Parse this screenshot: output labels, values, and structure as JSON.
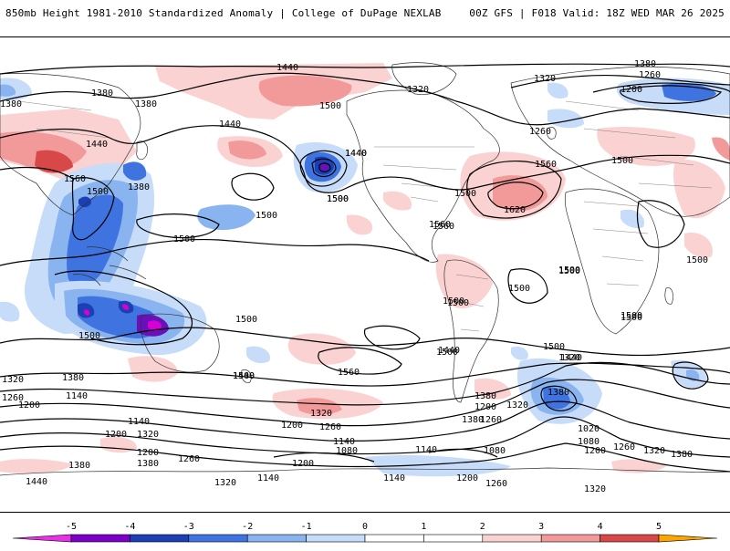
{
  "header": {
    "left": "850mb Height 1981-2010 Standardized Anomaly | College of DuPage NEXLAB",
    "right": "00Z GFS | F018 Valid: 18Z WED MAR 26 2025"
  },
  "contour_labels": [
    {
      "id": "c1",
      "text": "1440"
    },
    {
      "id": "c2",
      "text": "1380"
    },
    {
      "id": "c3",
      "text": "1320"
    },
    {
      "id": "c4",
      "text": "1380"
    },
    {
      "id": "c5",
      "text": "1260"
    },
    {
      "id": "c6",
      "text": "1200"
    },
    {
      "id": "c7",
      "text": "1380"
    },
    {
      "id": "c8",
      "text": "1380"
    },
    {
      "id": "c9",
      "text": "1500"
    },
    {
      "id": "c10",
      "text": "1440"
    },
    {
      "id": "c11",
      "text": "1320"
    },
    {
      "id": "c12",
      "text": "1260"
    },
    {
      "id": "c13",
      "text": "1440"
    },
    {
      "id": "c14",
      "text": "1500"
    },
    {
      "id": "c15",
      "text": "1560"
    },
    {
      "id": "c16",
      "text": "1380"
    },
    {
      "id": "c17",
      "text": "1440"
    },
    {
      "id": "c18",
      "text": "1500"
    },
    {
      "id": "c19",
      "text": "1500"
    },
    {
      "id": "c20",
      "text": "1620"
    },
    {
      "id": "c21",
      "text": "1560"
    },
    {
      "id": "c22",
      "text": "1500"
    },
    {
      "id": "c23",
      "text": "1500"
    },
    {
      "id": "c24",
      "text": "1500"
    },
    {
      "id": "c25",
      "text": "1560"
    },
    {
      "id": "c26",
      "text": "1500"
    },
    {
      "id": "c27",
      "text": "1500"
    },
    {
      "id": "c28",
      "text": "1500"
    },
    {
      "id": "c29",
      "text": "1500"
    },
    {
      "id": "c30",
      "text": "1500"
    },
    {
      "id": "c31",
      "text": "1500"
    },
    {
      "id": "c32",
      "text": "1440"
    },
    {
      "id": "c33",
      "text": "1320"
    },
    {
      "id": "c34",
      "text": "1500"
    },
    {
      "id": "c35",
      "text": "1440"
    },
    {
      "id": "c36",
      "text": "1380"
    },
    {
      "id": "c37",
      "text": "1320"
    },
    {
      "id": "c38",
      "text": "1260"
    },
    {
      "id": "c39",
      "text": "1200"
    },
    {
      "id": "c40",
      "text": "1140"
    },
    {
      "id": "c41",
      "text": "1140"
    },
    {
      "id": "c42",
      "text": "1200"
    },
    {
      "id": "c43",
      "text": "1320"
    },
    {
      "id": "c44",
      "text": "1200"
    },
    {
      "id": "c45",
      "text": "1260"
    },
    {
      "id": "c46",
      "text": "1380"
    },
    {
      "id": "c47",
      "text": "1380"
    },
    {
      "id": "c48",
      "text": "1440"
    },
    {
      "id": "c49",
      "text": "1320"
    },
    {
      "id": "c50",
      "text": "1260"
    },
    {
      "id": "c51",
      "text": "1200"
    },
    {
      "id": "c52",
      "text": "1140"
    },
    {
      "id": "c53",
      "text": "1080"
    },
    {
      "id": "c54",
      "text": "1200"
    },
    {
      "id": "c55",
      "text": "1140"
    },
    {
      "id": "c56",
      "text": "1080"
    },
    {
      "id": "c57",
      "text": "1140"
    },
    {
      "id": "c58",
      "text": "1200"
    },
    {
      "id": "c59",
      "text": "1140"
    },
    {
      "id": "c60",
      "text": "1260"
    },
    {
      "id": "c61",
      "text": "1320"
    },
    {
      "id": "c62",
      "text": "1380"
    },
    {
      "id": "c63",
      "text": "1320"
    },
    {
      "id": "c64",
      "text": "1380"
    },
    {
      "id": "c65",
      "text": "1200"
    },
    {
      "id": "c66",
      "text": "1260"
    },
    {
      "id": "c67",
      "text": "1020"
    },
    {
      "id": "c68",
      "text": "1080"
    },
    {
      "id": "c69",
      "text": "1200"
    },
    {
      "id": "c70",
      "text": "1260"
    },
    {
      "id": "c71",
      "text": "1380"
    },
    {
      "id": "c72",
      "text": "1320"
    },
    {
      "id": "c73",
      "text": "1380"
    },
    {
      "id": "c74",
      "text": "1320"
    },
    {
      "id": "c75",
      "text": "1500"
    },
    {
      "id": "c76",
      "text": "1500"
    },
    {
      "id": "c77",
      "text": "1560"
    },
    {
      "id": "c78",
      "text": "1500"
    },
    {
      "id": "c79",
      "text": "1560"
    },
    {
      "id": "c80",
      "text": "1500"
    },
    {
      "id": "c81",
      "text": "1440"
    },
    {
      "id": "c82",
      "text": "1500"
    },
    {
      "id": "c83",
      "text": "1500"
    },
    {
      "id": "c84",
      "text": "1500"
    },
    {
      "id": "c85",
      "text": "1440"
    }
  ],
  "colorbar": {
    "ticks": [
      "-5",
      "-4",
      "-3",
      "-2",
      "-1",
      "0",
      "1",
      "2",
      "3",
      "4",
      "5"
    ],
    "colors": [
      "#d400d4",
      "#7b00c8",
      "#1c3fb4",
      "#3f74e0",
      "#8ab4f0",
      "#c6dcf8",
      "#ffffff",
      "#ffffff",
      "#ffd4d4",
      "#f5a3a3",
      "#e25a5a",
      "#c40000",
      "#ff8c00"
    ],
    "negative_end_color": "#e830e8",
    "positive_end_color": "#ffa500"
  },
  "anomaly_colors": {
    "neg1": "#c6dcf8",
    "neg2": "#8ab4f0",
    "neg3": "#3f74e0",
    "neg4": "#1c3fb4",
    "neg5": "#6a10b8",
    "neg6": "#d400d4",
    "pos1": "#fbd2d2",
    "pos2": "#f29a9a",
    "pos3": "#d84848",
    "pos4": "#b40000"
  }
}
